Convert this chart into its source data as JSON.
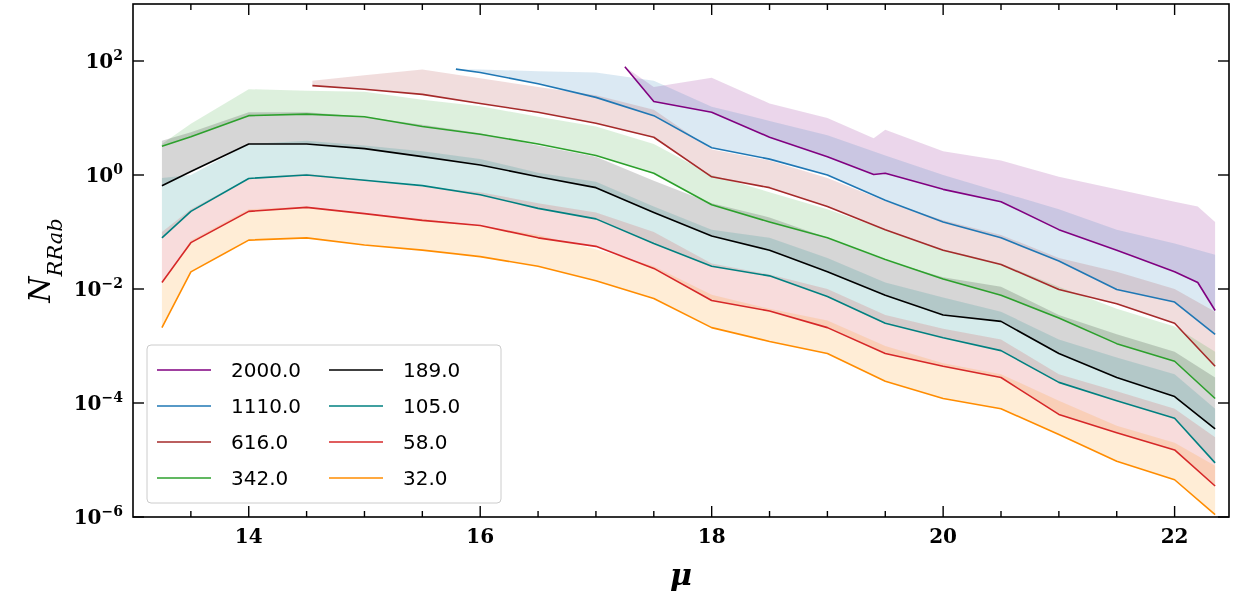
{
  "chart_data": {
    "type": "line",
    "xlabel": "μ",
    "ylabel": "N$_{RRab}$",
    "log": "y",
    "legend": "bottom left",
    "xlim": [
      13.0,
      22.47
    ],
    "ylim": [
      1e-06,
      1000
    ],
    "xticks": [
      {
        "value": 13.5,
        "label": null
      },
      14,
      {
        "value": 14.5,
        "label": null
      },
      {
        "value": 15,
        "label": null
      },
      {
        "value": 15.5,
        "label": null
      },
      16,
      {
        "value": 16.5,
        "label": null
      },
      {
        "value": 17,
        "label": null
      },
      {
        "value": 17.5,
        "label": null
      },
      18,
      {
        "value": 18.5,
        "label": null
      },
      {
        "value": 19,
        "label": null
      },
      {
        "value": 19.5,
        "label": null
      },
      20,
      {
        "value": 20.5,
        "label": null
      },
      {
        "value": 21,
        "label": null
      },
      {
        "value": 21.5,
        "label": null
      },
      22
    ],
    "yticks": [
      {
        "value": 1e-06,
        "label": "10$^{−6}$"
      },
      {
        "value": 0.0001,
        "label": "10$^{−4}$"
      },
      {
        "value": 0.01,
        "label": "10$^{−2}$"
      },
      {
        "value": 1,
        "label": "10$^{0}$"
      },
      {
        "value": 100,
        "label": "10$^{2}$"
      }
    ],
    "series": [
      {
        "name": "2000.0",
        "color": "#800080",
        "x": [
          17.25,
          17.5,
          18,
          18.5,
          19,
          19.4,
          19.5,
          20,
          20.5,
          21,
          21.5,
          22,
          22.2,
          22.35
        ],
        "values": [
          79,
          19.5,
          12.6,
          4.6,
          2.1,
          1.02,
          1.07,
          0.56,
          0.34,
          0.11,
          0.048,
          0.02,
          0.013,
          0.0042
        ],
        "lower": [
          79,
          19.5,
          12.6,
          4.6,
          2.1,
          1.02,
          1.07,
          0.56,
          0.34,
          0.11,
          0.048,
          0.02,
          0.013,
          0.0042
        ],
        "upper": [
          79,
          35,
          51,
          18,
          10,
          4.4,
          6.2,
          2.6,
          1.8,
          0.93,
          0.56,
          0.34,
          0.28,
          0.15
        ]
      },
      {
        "name": "1110.0",
        "color": "#1f77b4",
        "x": [
          15.79,
          16,
          16.5,
          17,
          17.5,
          18,
          18.5,
          19,
          19.5,
          20,
          20.5,
          21,
          21.5,
          22,
          22.35
        ],
        "values": [
          72,
          63,
          40,
          23,
          11,
          3.0,
          1.9,
          1.0,
          0.36,
          0.15,
          0.079,
          0.031,
          0.0098,
          0.0059,
          0.0016
        ],
        "lower": [
          72,
          63,
          40,
          23,
          11,
          3.0,
          1.9,
          1.0,
          0.36,
          0.15,
          0.079,
          0.031,
          0.0098,
          0.0059,
          0.0016
        ],
        "upper": [
          72,
          71,
          66,
          63,
          45,
          15.8,
          8.9,
          5.0,
          2.2,
          1.0,
          0.5,
          0.25,
          0.11,
          0.063,
          0.04
        ]
      },
      {
        "name": "616.0",
        "color": "#a52a2a",
        "x": [
          14.55,
          15,
          15.5,
          16,
          16.5,
          17,
          17.5,
          18,
          18.5,
          19,
          19.5,
          20,
          20.5,
          21,
          21.5,
          22,
          22.35
        ],
        "values": [
          37,
          32,
          26,
          18,
          12.6,
          8.1,
          4.6,
          0.93,
          0.6,
          0.28,
          0.11,
          0.048,
          0.027,
          0.0098,
          0.0055,
          0.0025,
          0.00044
        ],
        "lower": [
          37,
          32,
          26,
          18,
          12.6,
          8.1,
          4.6,
          0.93,
          0.6,
          0.28,
          0.11,
          0.048,
          0.027,
          0.0098,
          0.0055,
          0.0025,
          0.00044
        ],
        "upper": [
          45,
          56,
          71,
          50,
          35,
          25,
          14,
          2.8,
          1.8,
          0.89,
          0.35,
          0.16,
          0.089,
          0.035,
          0.02,
          0.01,
          0.004
        ]
      },
      {
        "name": "342.0",
        "color": "#2ca02c",
        "x": [
          13.25,
          13.5,
          14,
          14.5,
          15,
          15.5,
          16,
          16.5,
          17,
          17.5,
          18,
          18.5,
          19,
          19.5,
          20,
          20.5,
          21,
          21.5,
          22,
          22.35
        ],
        "values": [
          3.2,
          4.7,
          11,
          11.7,
          10.5,
          7.1,
          5.2,
          3.5,
          2.2,
          1.07,
          0.3,
          0.15,
          0.079,
          0.033,
          0.015,
          0.0078,
          0.0031,
          0.0011,
          0.00054,
          0.00012
        ],
        "lower": [
          3.2,
          4.7,
          11,
          11.7,
          10.5,
          7.1,
          5.2,
          3.5,
          2.2,
          1.07,
          0.3,
          0.15,
          0.079,
          0.033,
          0.015,
          0.0078,
          0.0031,
          0.0011,
          0.00054,
          0.00012
        ],
        "upper": [
          3.5,
          7.9,
          32,
          30,
          29,
          21,
          16,
          10.5,
          7.1,
          3.5,
          1.0,
          0.5,
          0.25,
          0.11,
          0.05,
          0.028,
          0.011,
          0.0045,
          0.0022,
          0.00079
        ]
      },
      {
        "name": "189.0",
        "color": "#000000",
        "x": [
          13.25,
          13.5,
          14,
          14.5,
          15,
          15.5,
          16,
          16.5,
          17,
          17.5,
          18,
          18.5,
          19,
          19.5,
          20,
          20.5,
          21,
          21.5,
          22,
          22.35
        ],
        "values": [
          0.65,
          1.15,
          3.5,
          3.5,
          2.9,
          2.1,
          1.5,
          0.93,
          0.6,
          0.22,
          0.085,
          0.048,
          0.02,
          0.0078,
          0.0035,
          0.0027,
          0.00074,
          0.00028,
          0.00013,
          3.5e-05
        ],
        "lower": [
          0.65,
          1.15,
          3.5,
          3.5,
          2.9,
          2.1,
          1.5,
          0.93,
          0.6,
          0.22,
          0.085,
          0.048,
          0.02,
          0.0078,
          0.0035,
          0.0027,
          0.00074,
          0.00028,
          0.00013,
          3.5e-05
        ],
        "upper": [
          4.0,
          5.6,
          12.6,
          12.6,
          10.5,
          7.6,
          5.4,
          3.3,
          2.1,
          0.79,
          0.32,
          0.18,
          0.079,
          0.032,
          0.016,
          0.011,
          0.0035,
          0.0016,
          0.00079,
          0.00028
        ]
      },
      {
        "name": "105.0",
        "color": "#008080",
        "x": [
          13.25,
          13.5,
          14,
          14.5,
          15,
          15.5,
          16,
          16.5,
          17,
          17.5,
          18,
          18.5,
          19,
          19.5,
          20,
          20.5,
          21,
          21.5,
          22,
          22.35
        ],
        "values": [
          0.079,
          0.23,
          0.87,
          1.0,
          0.81,
          0.65,
          0.45,
          0.26,
          0.17,
          0.063,
          0.025,
          0.017,
          0.0074,
          0.0025,
          0.0014,
          0.00083,
          0.00023,
          0.00011,
          5.4e-05,
          8.9e-06
        ],
        "lower": [
          0.079,
          0.23,
          0.87,
          1.0,
          0.81,
          0.65,
          0.45,
          0.26,
          0.17,
          0.063,
          0.025,
          0.017,
          0.0074,
          0.0025,
          0.0014,
          0.00083,
          0.00023,
          0.00011,
          5.4e-05,
          8.9e-06
        ],
        "upper": [
          0.89,
          1.0,
          3.5,
          4.0,
          3.3,
          2.6,
          1.9,
          1.1,
          0.76,
          0.28,
          0.11,
          0.079,
          0.035,
          0.013,
          0.0071,
          0.004,
          0.0013,
          0.00063,
          0.00032,
          7.9e-05
        ]
      },
      {
        "name": "58.0",
        "color": "#d62728",
        "x": [
          13.25,
          13.5,
          14,
          14.5,
          15,
          15.5,
          16,
          16.5,
          17,
          17.5,
          18,
          18.5,
          19,
          19.5,
          20,
          20.5,
          21,
          21.5,
          22,
          22.35
        ],
        "values": [
          0.013,
          0.065,
          0.23,
          0.27,
          0.21,
          0.16,
          0.13,
          0.079,
          0.056,
          0.023,
          0.0063,
          0.0041,
          0.0021,
          0.00074,
          0.00044,
          0.00028,
          6.3e-05,
          3e-05,
          1.5e-05,
          3.5e-06
        ],
        "lower": [
          0.013,
          0.065,
          0.23,
          0.27,
          0.21,
          0.16,
          0.13,
          0.079,
          0.056,
          0.023,
          0.0063,
          0.0041,
          0.0021,
          0.00074,
          0.00044,
          0.00028,
          6.3e-05,
          3e-05,
          1.5e-05,
          3.5e-06
        ],
        "upper": [
          0.1,
          0.25,
          0.89,
          1.05,
          0.83,
          0.63,
          0.5,
          0.32,
          0.22,
          0.1,
          0.028,
          0.018,
          0.01,
          0.0035,
          0.002,
          0.0013,
          0.00032,
          0.00016,
          7.9e-05,
          2.5e-05
        ]
      },
      {
        "name": "32.0",
        "color": "#ff8c00",
        "x": [
          13.25,
          13.5,
          14,
          14.5,
          15,
          15.5,
          16,
          16.5,
          17,
          17.5,
          18,
          18.5,
          19,
          19.5,
          20,
          20.5,
          21,
          21.5,
          22,
          22.35
        ],
        "values": [
          0.0021,
          0.02,
          0.072,
          0.079,
          0.059,
          0.048,
          0.037,
          0.025,
          0.014,
          0.0068,
          0.0021,
          0.0012,
          0.00074,
          0.00024,
          0.00012,
          7.9e-05,
          2.8e-05,
          9.5e-06,
          4.5e-06,
          1.1e-06
        ],
        "lower": [
          0.0021,
          0.02,
          0.072,
          0.079,
          0.059,
          0.048,
          0.037,
          0.025,
          0.014,
          0.0068,
          0.0021,
          0.0012,
          0.00074,
          0.00024,
          0.00012,
          7.9e-05,
          2.8e-05,
          9.5e-06,
          4.5e-06,
          1.1e-06
        ],
        "upper": [
          0.013,
          0.071,
          0.25,
          0.28,
          0.21,
          0.17,
          0.13,
          0.089,
          0.05,
          0.025,
          0.0079,
          0.0045,
          0.0028,
          0.001,
          0.0005,
          0.00032,
          0.00011,
          4e-05,
          2e-05,
          7.9e-06
        ]
      }
    ]
  }
}
